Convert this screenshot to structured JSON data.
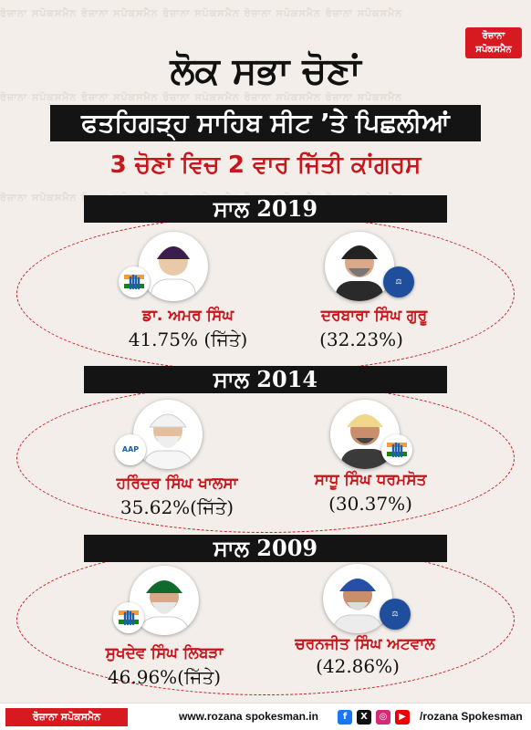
{
  "brand": {
    "logo_line1": "ਰੋਜ਼ਾਨਾ",
    "logo_line2": "ਸਪੋਕਸਮੈਨ"
  },
  "headline": {
    "line1": "ਲੋਕ ਸਭਾ ਚੋਣਾਂ",
    "line2": "ਫਤਹਿਗੜ੍ਹ ਸਾਹਿਬ ਸੀਟ ’ਤੇ ਪਿਛਲੀਆਂ",
    "line3": "3 ਚੋਣਾਂ ਵਿਚ 2 ਵਾਰ ਜਿੱਤੀ ਕਾਂਗਰਸ"
  },
  "watermark": "ਰੋਜ਼ਾਨਾ ਸਪੋਕਸਮੈਨ ਰੋਜ਼ਾਨਾ ਸਪੋਕਸਮੈਨ ਰੋਜ਼ਾਨਾ ਸਪੋਕਸਮੈਨ ਰੋਜ਼ਾਨਾ ਸਪੋਕਸਮੈਨ ਰੋਜ਼ਾਨਾ ਸਪੋਕਸਮੈਨ",
  "elections": [
    {
      "year_label": "ਸਾਲ 2019",
      "left": {
        "name": "ਡਾ. ਅਮਰ ਸਿੰਘ",
        "result": "41.75% (ਜਿੱਤੇ)",
        "party": "congress"
      },
      "right": {
        "name": "ਦਰਬਾਰਾ ਸਿੰਘ ਗੁਰੂ",
        "result": "(32.23%)",
        "party": "bsp"
      }
    },
    {
      "year_label": "ਸਾਲ 2014",
      "left": {
        "name": "ਹਰਿੰਦਰ ਸਿੰਘ ਖਾਲਸਾ",
        "result": "35.62%(ਜਿੱਤੇ)",
        "party": "aap",
        "party_text": "AAP"
      },
      "right": {
        "name": "ਸਾਧੂ ਸਿੰਘ ਧਰਮਸੋਤ",
        "result": "(30.37%)",
        "party": "congress"
      }
    },
    {
      "year_label": "ਸਾਲ 2009",
      "left": {
        "name": "ਸੁਖਦੇਵ ਸਿੰਘ ਲਿਬੜਾ",
        "result": "46.96%(ਜਿੱਤੇ)",
        "party": "congress"
      },
      "right": {
        "name": "ਚਰਨਜੀਤ ਸਿੰਘ ਅਟਵਾਲ",
        "result": "(42.86%)",
        "party": "bsp"
      }
    }
  ],
  "footer": {
    "brand": "ਰੋਜ਼ਾਨਾ ਸਪੋਕਸਮੈਨ",
    "url": "www.rozana spokesman.in",
    "handle": "/rozana Spokesman",
    "social_icons": [
      "facebook-icon",
      "x-icon",
      "instagram-icon",
      "youtube-icon"
    ]
  },
  "colors": {
    "accent_red": "#c8161d",
    "bar_black": "#141414",
    "bsp_blue": "#1f4f9c"
  }
}
